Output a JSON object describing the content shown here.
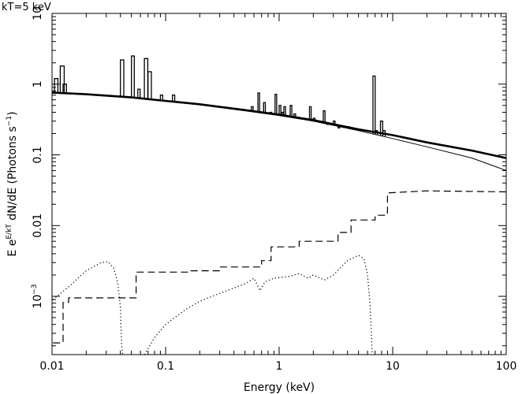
{
  "chart_data": {
    "type": "line",
    "title": "kT=5 keV",
    "xlabel": "Energy (keV)",
    "ylabel": {
      "prefix": "E e",
      "sup1": "E/kT",
      "middle": " dN/dE (Photons s",
      "sup2": "−1",
      "suffix": ")"
    },
    "xscale": "log",
    "yscale": "log",
    "xlim": [
      0.01,
      100
    ],
    "ylim": [
      0.00015,
      10
    ],
    "x_tick_labels": [
      {
        "value": 0.01,
        "label": "0.01"
      },
      {
        "value": 0.1,
        "label": "0.1"
      },
      {
        "value": 1,
        "label": "1"
      },
      {
        "value": 10,
        "label": "10"
      },
      {
        "value": 100,
        "label": "100"
      }
    ],
    "y_tick_labels": [
      {
        "value": 10,
        "label": "10",
        "sup": ""
      },
      {
        "value": 1,
        "label": "1",
        "sup": ""
      },
      {
        "value": 0.1,
        "label": "0.1",
        "sup": ""
      },
      {
        "value": 0.01,
        "label": "0.01",
        "sup": ""
      },
      {
        "value": 0.001,
        "label": "10",
        "sup": "−3"
      }
    ],
    "grid": false,
    "series": [
      {
        "style": "thick-solid",
        "points": [
          [
            0.01,
            0.76
          ],
          [
            0.02,
            0.72
          ],
          [
            0.05,
            0.65
          ],
          [
            0.1,
            0.58
          ],
          [
            0.2,
            0.52
          ],
          [
            0.5,
            0.43
          ],
          [
            1,
            0.37
          ],
          [
            2,
            0.31
          ],
          [
            5,
            0.23
          ],
          [
            10,
            0.19
          ],
          [
            20,
            0.15
          ],
          [
            50,
            0.115
          ],
          [
            100,
            0.09
          ]
        ]
      },
      {
        "style": "thin-solid",
        "points": [
          [
            0.01,
            0.75
          ],
          [
            0.02,
            0.71
          ],
          [
            0.05,
            0.64
          ],
          [
            0.1,
            0.57
          ],
          [
            0.2,
            0.51
          ],
          [
            0.5,
            0.42
          ],
          [
            1,
            0.36
          ],
          [
            2,
            0.3
          ],
          [
            5,
            0.22
          ],
          [
            10,
            0.17
          ],
          [
            20,
            0.13
          ],
          [
            50,
            0.09
          ],
          [
            100,
            0.06
          ]
        ]
      },
      {
        "style": "dashed",
        "points": [
          [
            0.0102,
            0.00022
          ],
          [
            0.0125,
            0.00022
          ],
          [
            0.0125,
            0.00082
          ],
          [
            0.014,
            0.00082
          ],
          [
            0.014,
            0.00095
          ],
          [
            0.055,
            0.00095
          ],
          [
            0.055,
            0.0022
          ],
          [
            0.16,
            0.0022
          ],
          [
            0.16,
            0.0023
          ],
          [
            0.3,
            0.0023
          ],
          [
            0.3,
            0.0026
          ],
          [
            0.7,
            0.0026
          ],
          [
            0.7,
            0.0032
          ],
          [
            0.85,
            0.0032
          ],
          [
            0.85,
            0.005
          ],
          [
            1.5,
            0.005
          ],
          [
            1.5,
            0.006
          ],
          [
            3.3,
            0.006
          ],
          [
            3.3,
            0.008
          ],
          [
            4.3,
            0.008
          ],
          [
            4.3,
            0.012
          ],
          [
            7,
            0.012
          ],
          [
            7,
            0.014
          ],
          [
            9,
            0.014
          ],
          [
            9,
            0.029
          ],
          [
            20,
            0.031
          ],
          [
            100,
            0.03
          ]
        ]
      },
      {
        "style": "dotted",
        "points": [
          [
            0.0102,
            0.0009
          ],
          [
            0.015,
            0.0015
          ],
          [
            0.02,
            0.0023
          ],
          [
            0.027,
            0.003
          ],
          [
            0.031,
            0.0031
          ],
          [
            0.035,
            0.0025
          ],
          [
            0.038,
            0.0015
          ],
          [
            0.04,
            0.0007
          ],
          [
            0.041,
            0.0002
          ],
          [
            0.042,
            0.00015
          ]
        ]
      },
      {
        "style": "dotted",
        "points": [
          [
            0.065,
            0.00015
          ],
          [
            0.08,
            0.00026
          ],
          [
            0.1,
            0.0004
          ],
          [
            0.15,
            0.00065
          ],
          [
            0.2,
            0.00085
          ],
          [
            0.3,
            0.0011
          ],
          [
            0.5,
            0.0015
          ],
          [
            0.6,
            0.0018
          ],
          [
            0.68,
            0.0012
          ],
          [
            0.75,
            0.0016
          ],
          [
            0.9,
            0.0018
          ],
          [
            1.2,
            0.0019
          ],
          [
            1.5,
            0.0021
          ],
          [
            1.8,
            0.0018
          ],
          [
            2,
            0.002
          ],
          [
            2.5,
            0.0017
          ],
          [
            3,
            0.002
          ],
          [
            4,
            0.0032
          ],
          [
            5,
            0.0038
          ],
          [
            5.6,
            0.0034
          ],
          [
            6,
            0.002
          ],
          [
            6.3,
            0.0008
          ],
          [
            6.5,
            0.0003
          ],
          [
            6.6,
            0.00015
          ]
        ]
      }
    ],
    "lines": [
      {
        "x": 0.0105,
        "peak": 1.2,
        "width": 0.03
      },
      {
        "x": 0.0118,
        "peak": 1.8,
        "width": 0.035
      },
      {
        "x": 0.0125,
        "peak": 1.0,
        "width": 0.03
      },
      {
        "x": 0.04,
        "peak": 2.2,
        "width": 0.03
      },
      {
        "x": 0.05,
        "peak": 2.5,
        "width": 0.025
      },
      {
        "x": 0.057,
        "peak": 0.85,
        "width": 0.02
      },
      {
        "x": 0.065,
        "peak": 2.3,
        "width": 0.03
      },
      {
        "x": 0.07,
        "peak": 1.5,
        "width": 0.03
      },
      {
        "x": 0.09,
        "peak": 0.7,
        "width": 0.02
      },
      {
        "x": 0.115,
        "peak": 0.7,
        "width": 0.02
      },
      {
        "x": 0.13,
        "peak": 0.55,
        "width": 0.02
      },
      {
        "x": 0.23,
        "peak": 0.5,
        "width": 0.02
      },
      {
        "x": 0.57,
        "peak": 0.48,
        "width": 0.015
      },
      {
        "x": 0.65,
        "peak": 0.75,
        "width": 0.015
      },
      {
        "x": 0.73,
        "peak": 0.55,
        "width": 0.015
      },
      {
        "x": 0.83,
        "peak": 0.4,
        "width": 0.015
      },
      {
        "x": 0.92,
        "peak": 0.72,
        "width": 0.015
      },
      {
        "x": 1.0,
        "peak": 0.5,
        "width": 0.015
      },
      {
        "x": 1.05,
        "peak": 0.4,
        "width": 0.015
      },
      {
        "x": 1.1,
        "peak": 0.48,
        "width": 0.015
      },
      {
        "x": 1.25,
        "peak": 0.5,
        "width": 0.015
      },
      {
        "x": 1.35,
        "peak": 0.38,
        "width": 0.015
      },
      {
        "x": 1.85,
        "peak": 0.48,
        "width": 0.015
      },
      {
        "x": 2.0,
        "peak": 0.33,
        "width": 0.015
      },
      {
        "x": 2.45,
        "peak": 0.42,
        "width": 0.015
      },
      {
        "x": 2.65,
        "peak": 0.27,
        "width": 0.015
      },
      {
        "x": 3.0,
        "peak": 0.3,
        "width": 0.015
      },
      {
        "x": 3.3,
        "peak": 0.24,
        "width": 0.015
      },
      {
        "x": 4.0,
        "peak": 0.25,
        "width": 0.015
      },
      {
        "x": 6.7,
        "peak": 1.3,
        "width": 0.02
      },
      {
        "x": 7.0,
        "peak": 0.22,
        "width": 0.02
      },
      {
        "x": 7.8,
        "peak": 0.3,
        "width": 0.02
      },
      {
        "x": 8.2,
        "peak": 0.22,
        "width": 0.02
      }
    ]
  }
}
